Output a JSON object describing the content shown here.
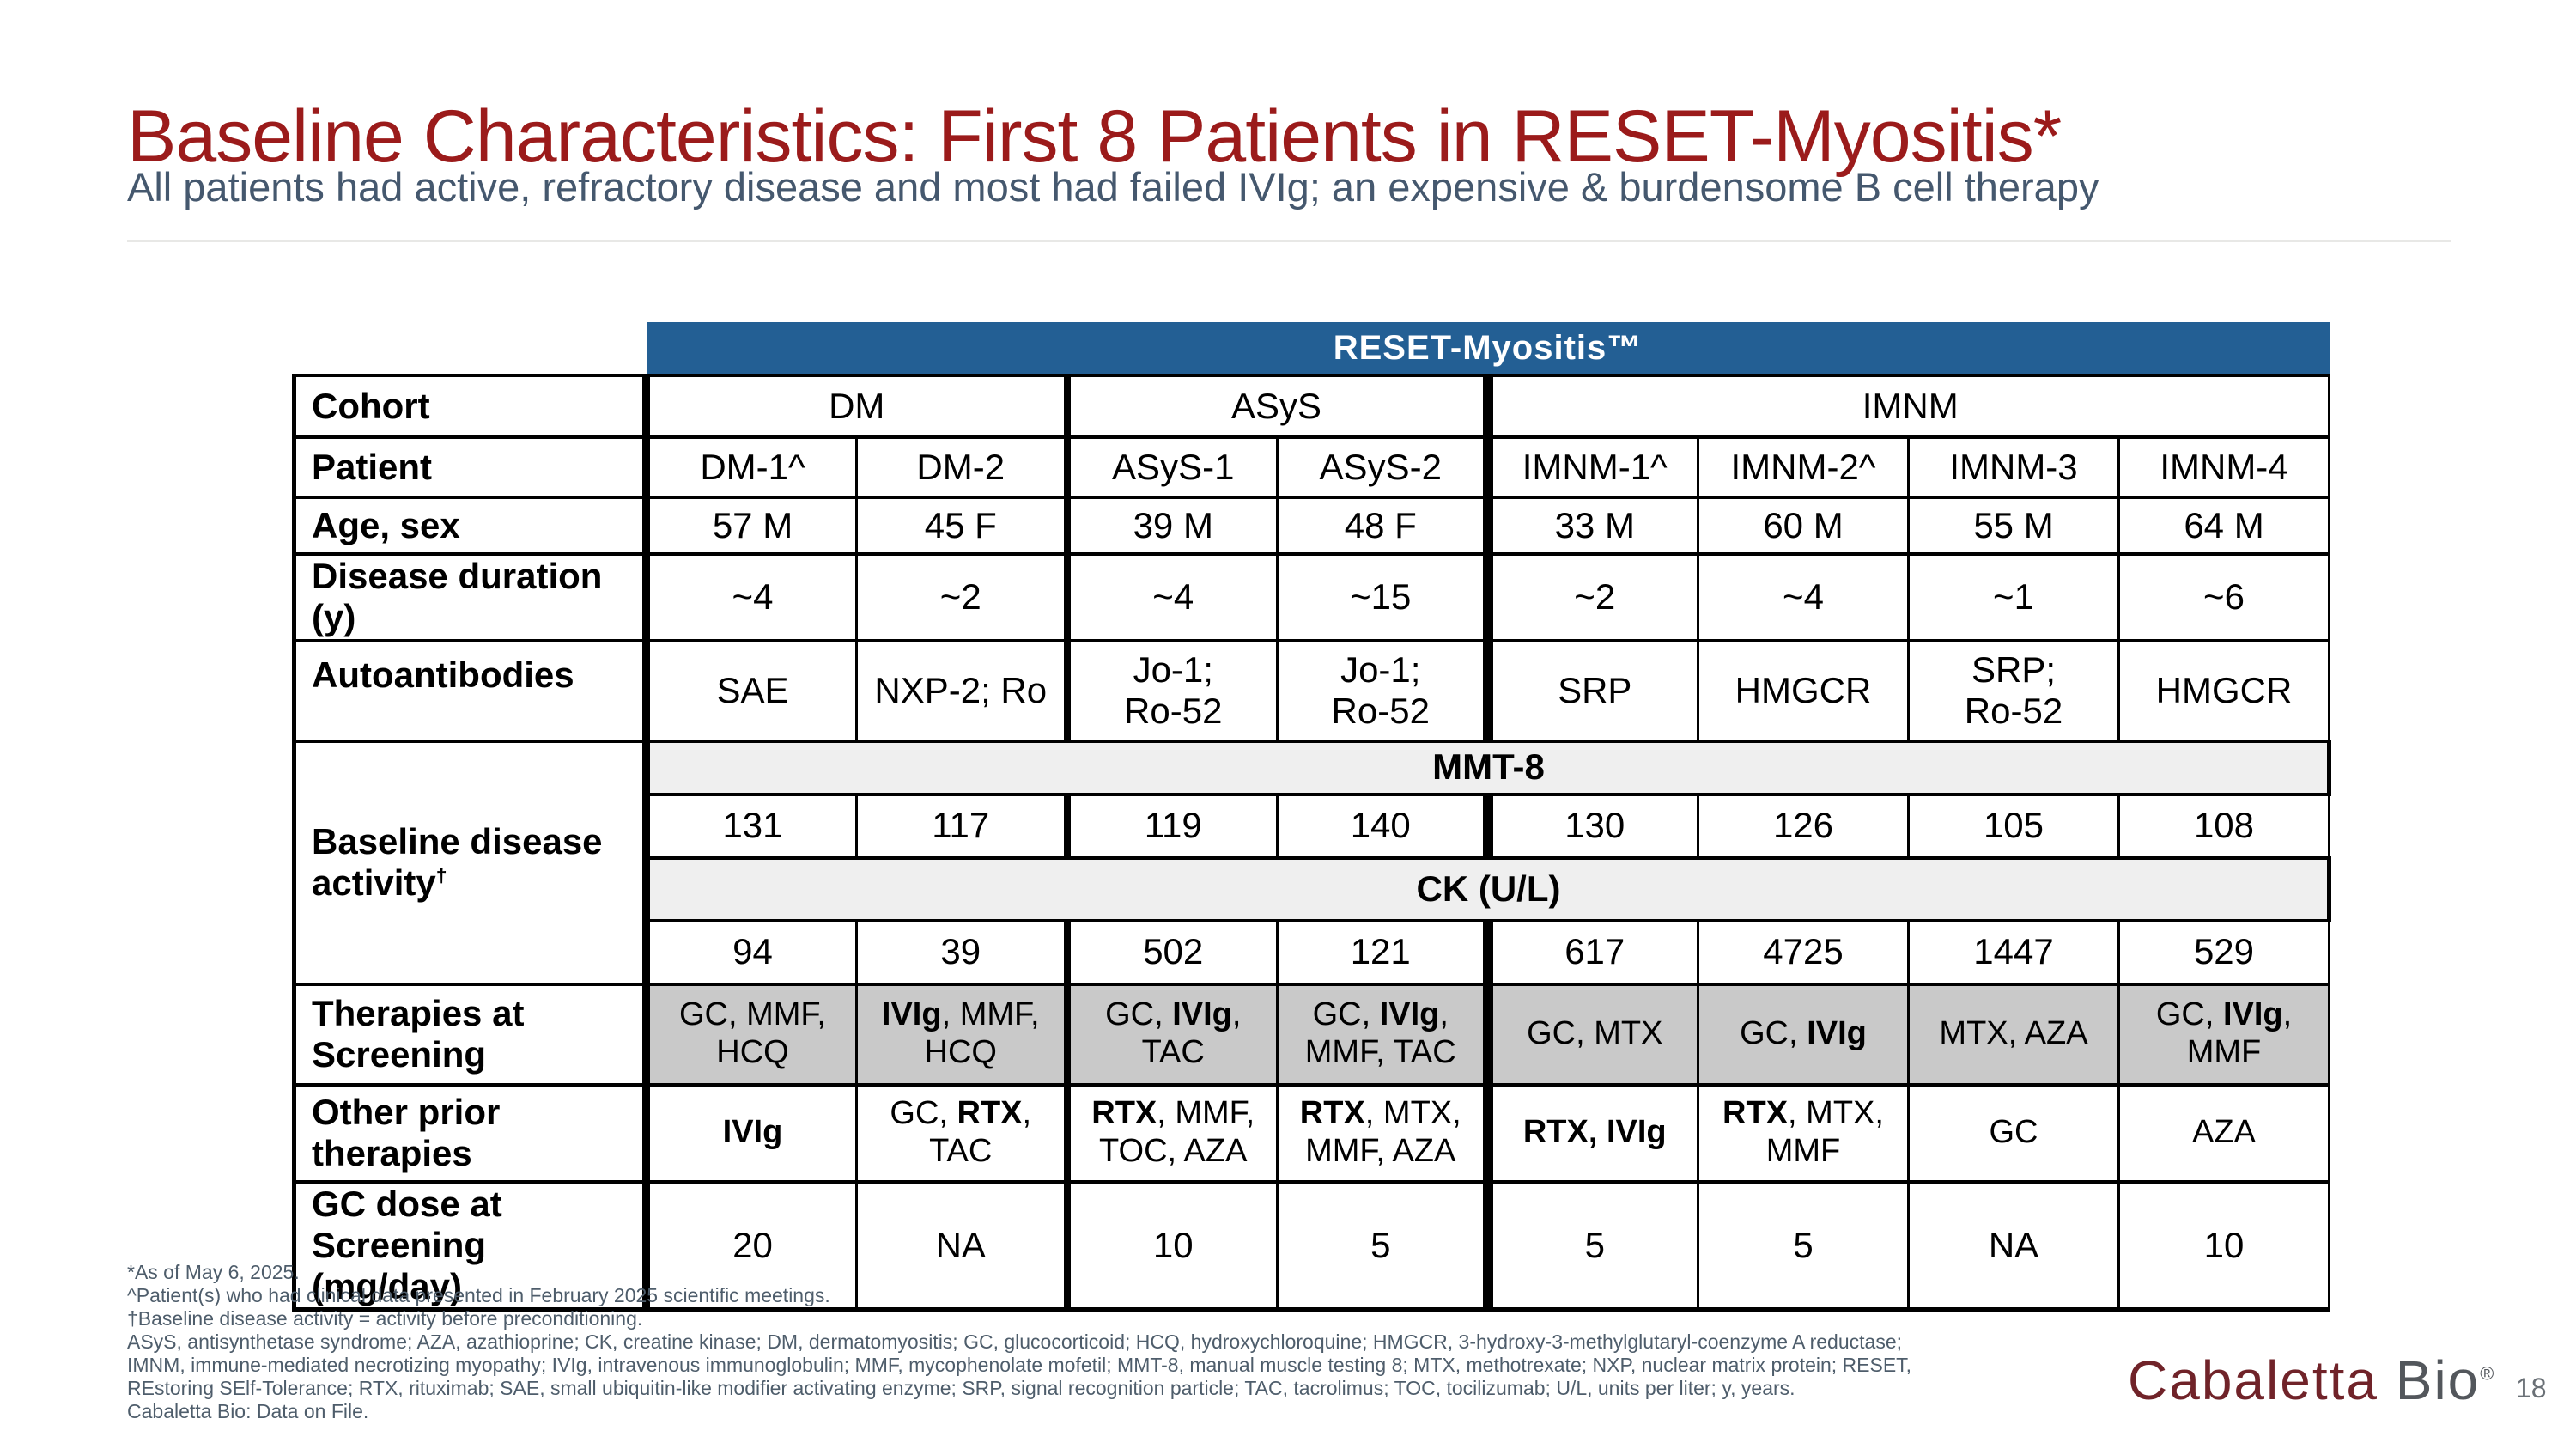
{
  "theme": {
    "title_color": "#9B1B1B",
    "subtitle_color": "#45586E",
    "banner_bg": "#235F94",
    "banner_text": "#FFFFFF",
    "subheader_bg": "#EFEFEF",
    "therapy_bg": "#C9C9C9",
    "border_color": "#000000",
    "footnote_color": "#4E5D6B",
    "logo_maroon": "#702329",
    "logo_gray": "#53575C",
    "page_number_color": "#6A7076"
  },
  "header": {
    "title": "Baseline Characteristics: First 8 Patients in RESET-Myositis*",
    "subtitle": "All patients had active, refractory disease and most had failed IVIg; an expensive & burdensome B cell therapy"
  },
  "table": {
    "banner": "RESET-Myositis™",
    "row_labels": {
      "cohort": "Cohort",
      "patient": "Patient",
      "age_sex": "Age, sex",
      "disease_duration": "Disease duration (y)",
      "autoantibodies": "Autoantibodies",
      "baseline_activity": "Baseline disease activity",
      "baseline_activity_sup": "†",
      "therapies_at_screening": "Therapies at\nScreening",
      "other_prior_therapies": "Other prior\ntherapies",
      "gc_dose": "GC dose at\nScreening (mg/day)"
    },
    "cohorts": [
      "DM",
      "ASyS",
      "IMNM"
    ],
    "patients": [
      "DM-1^",
      "DM-2",
      "ASyS-1",
      "ASyS-2",
      "IMNM-1^",
      "IMNM-2^",
      "IMNM-3",
      "IMNM-4"
    ],
    "age_sex": [
      "57 M",
      "45 F",
      "39 M",
      "48 F",
      "33 M",
      "60 M",
      "55 M",
      "64 M"
    ],
    "disease_duration": [
      "~4",
      "~2",
      "~4",
      "~15",
      "~2",
      "~4",
      "~1",
      "~6"
    ],
    "autoantibodies": [
      "SAE",
      "NXP-2; Ro",
      "Jo-1;\nRo-52",
      "Jo-1;\nRo-52",
      "SRP",
      "HMGCR",
      "SRP;\nRo-52",
      "HMGCR"
    ],
    "mmt8_label": "MMT-8",
    "mmt8": [
      "131",
      "117",
      "119",
      "140",
      "130",
      "126",
      "105",
      "108"
    ],
    "ck_label": "CK (U/L)",
    "ck": [
      "94",
      "39",
      "502",
      "121",
      "617",
      "4725",
      "1447",
      "529"
    ],
    "therapies_at_screening": [
      "GC, MMF, HCQ",
      "**IVIg**, MMF,\nHCQ",
      "GC, **IVIg**,\nTAC",
      "GC, **IVIg**,\nMMF, TAC",
      "GC, MTX",
      "GC, **IVIg**",
      "MTX, AZA",
      "GC, **IVIg**,\nMMF"
    ],
    "other_prior_therapies": [
      "**IVIg**",
      "GC, **RTX**,\nTAC",
      "**RTX**, MMF,\nTOC, AZA",
      "**RTX**, MTX,\nMMF, AZA",
      "**RTX, IVIg**",
      "**RTX**, MTX,\nMMF",
      "GC",
      "AZA"
    ],
    "gc_dose": [
      "20",
      "NA",
      "10",
      "5",
      "5",
      "5",
      "NA",
      "10"
    ]
  },
  "footnotes": [
    "*As of May 6, 2025.",
    "^Patient(s) who had clinical data presented in February 2025 scientific meetings.",
    "†Baseline disease activity = activity before preconditioning.",
    "ASyS, antisynthetase syndrome; AZA, azathioprine; CK, creatine kinase; DM, dermatomyositis; GC, glucocorticoid; HCQ, hydroxychloroquine; HMGCR, 3-hydroxy-3-methylglutaryl-coenzyme A reductase;",
    "IMNM, immune-mediated necrotizing myopathy; IVIg, intravenous immunoglobulin; MMF, mycophenolate mofetil; MMT-8, manual muscle testing 8; MTX, methotrexate; NXP, nuclear matrix protein; RESET,",
    "REstoring SElf-Tolerance; RTX, rituximab; SAE, small ubiquitin-like modifier activating enzyme; SRP, signal recognition particle; TAC, tacrolimus; TOC, tocilizumab; U/L, units per liter; y, years.",
    "Cabaletta Bio: Data on File."
  ],
  "footer": {
    "brand_primary": "Cabaletta",
    "brand_secondary": "Bio",
    "registered_mark": "®",
    "page_number": "18"
  }
}
